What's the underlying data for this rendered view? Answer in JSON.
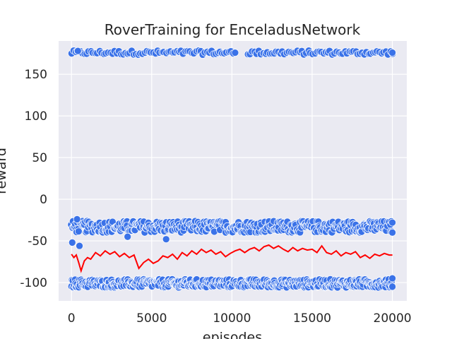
{
  "chart_data": {
    "type": "scatter",
    "title": "RoverTraining for EnceladusNetwork",
    "xlabel": "episodes",
    "ylabel": "reward",
    "xlim": [
      -800,
      20900
    ],
    "ylim": [
      -122,
      190
    ],
    "xticks": [
      0,
      5000,
      10000,
      15000,
      20000
    ],
    "yticks": [
      -100,
      -50,
      0,
      50,
      100,
      150
    ],
    "grid": true,
    "background": "#eaeaf2",
    "colors": {
      "points": "#3a72e8",
      "point_edge": "#ffffff",
      "line": "#ff0000"
    },
    "scatter_bands": [
      {
        "level": 176,
        "spread": 2.5,
        "x_start": 0,
        "x_end": 20000,
        "count": 150,
        "gaps": [
          [
            10300,
            11000
          ]
        ]
      },
      {
        "level": -33,
        "spread": 7,
        "x_start": 0,
        "x_end": 20000,
        "count": 420
      },
      {
        "level": -101,
        "spread": 5,
        "x_start": 0,
        "x_end": 20000,
        "count": 500
      }
    ],
    "outliers": [
      {
        "x": 50,
        "y": -52
      },
      {
        "x": 500,
        "y": -56
      },
      {
        "x": 350,
        "y": -24
      },
      {
        "x": 3500,
        "y": -45
      },
      {
        "x": 5900,
        "y": -48
      },
      {
        "x": 400,
        "y": 178
      },
      {
        "x": 20000,
        "y": -28
      },
      {
        "x": 20000,
        "y": -40
      },
      {
        "x": 20000,
        "y": -95
      },
      {
        "x": 20000,
        "y": -105
      },
      {
        "x": 20000,
        "y": 176
      }
    ],
    "moving_average": {
      "x": [
        0,
        150,
        300,
        450,
        600,
        800,
        1000,
        1200,
        1500,
        1800,
        2100,
        2400,
        2700,
        3000,
        3300,
        3600,
        3900,
        4200,
        4500,
        4800,
        5100,
        5400,
        5700,
        6000,
        6300,
        6600,
        6900,
        7200,
        7500,
        7800,
        8100,
        8400,
        8700,
        9000,
        9300,
        9600,
        9900,
        10200,
        10500,
        10800,
        11100,
        11400,
        11700,
        12000,
        12300,
        12600,
        12900,
        13200,
        13500,
        13800,
        14100,
        14400,
        14700,
        15000,
        15300,
        15600,
        15900,
        16200,
        16500,
        16800,
        17100,
        17400,
        17700,
        18000,
        18300,
        18600,
        18900,
        19200,
        19500,
        19800,
        20000
      ],
      "y": [
        -66,
        -70,
        -67,
        -76,
        -86,
        -74,
        -70,
        -72,
        -64,
        -68,
        -62,
        -66,
        -63,
        -69,
        -65,
        -70,
        -67,
        -83,
        -76,
        -72,
        -77,
        -74,
        -68,
        -70,
        -66,
        -72,
        -64,
        -68,
        -62,
        -66,
        -60,
        -64,
        -61,
        -66,
        -63,
        -69,
        -65,
        -62,
        -60,
        -64,
        -60,
        -58,
        -62,
        -57,
        -55,
        -59,
        -56,
        -60,
        -63,
        -58,
        -62,
        -59,
        -61,
        -60,
        -64,
        -56,
        -64,
        -66,
        -62,
        -68,
        -64,
        -66,
        -63,
        -70,
        -67,
        -71,
        -66,
        -68,
        -65,
        -67,
        -67
      ]
    }
  }
}
